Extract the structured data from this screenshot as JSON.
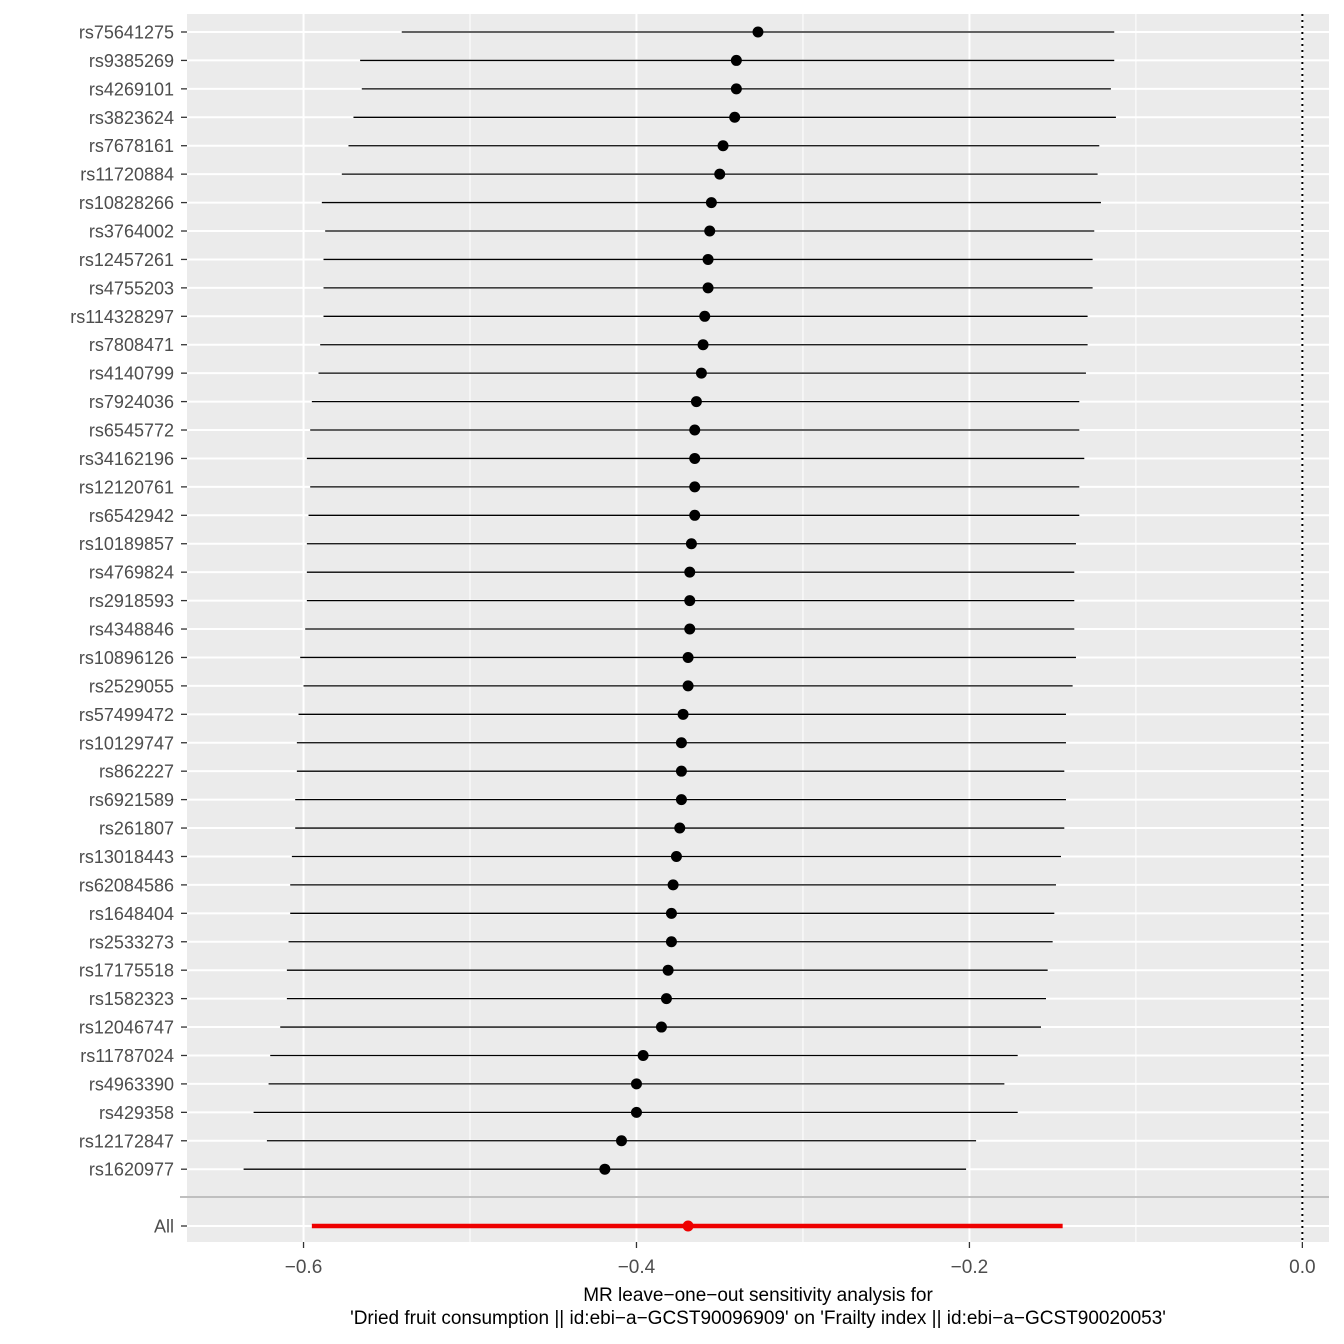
{
  "chart_data": {
    "type": "scatter",
    "subtype": "forest-leave-one-out",
    "xlabel_lines": [
      "MR leave−one−out sensitivity analysis for",
      "'Dried fruit consumption || id:ebi−a−GCST90096909' on 'Frailty index || id:ebi−a−GCST90020053'"
    ],
    "xlim": [
      -0.67,
      0.016
    ],
    "x_ticks": [
      -0.6,
      -0.4,
      -0.2,
      0.0
    ],
    "x_tick_labels": [
      "−0.6",
      "−0.4",
      "−0.2",
      "0.0"
    ],
    "reference_line": {
      "x": 0.0,
      "style": "dotted"
    },
    "grid": true,
    "colors": {
      "panel": "#ebebeb",
      "grid": "#ffffff",
      "point": "#000000",
      "overall": "#ee0000",
      "separator": "#bfbfbf"
    },
    "rows": [
      {
        "snp": "rs75641275",
        "b": -0.327,
        "lo": -0.541,
        "hi": -0.113
      },
      {
        "snp": "rs9385269",
        "b": -0.34,
        "lo": -0.566,
        "hi": -0.113
      },
      {
        "snp": "rs4269101",
        "b": -0.34,
        "lo": -0.565,
        "hi": -0.115
      },
      {
        "snp": "rs3823624",
        "b": -0.341,
        "lo": -0.57,
        "hi": -0.112
      },
      {
        "snp": "rs7678161",
        "b": -0.348,
        "lo": -0.573,
        "hi": -0.122
      },
      {
        "snp": "rs11720884",
        "b": -0.35,
        "lo": -0.577,
        "hi": -0.123
      },
      {
        "snp": "rs10828266",
        "b": -0.355,
        "lo": -0.589,
        "hi": -0.121
      },
      {
        "snp": "rs3764002",
        "b": -0.356,
        "lo": -0.587,
        "hi": -0.125
      },
      {
        "snp": "rs12457261",
        "b": -0.357,
        "lo": -0.588,
        "hi": -0.126
      },
      {
        "snp": "rs4755203",
        "b": -0.357,
        "lo": -0.588,
        "hi": -0.126
      },
      {
        "snp": "rs114328297",
        "b": -0.359,
        "lo": -0.588,
        "hi": -0.129
      },
      {
        "snp": "rs7808471",
        "b": -0.36,
        "lo": -0.59,
        "hi": -0.129
      },
      {
        "snp": "rs4140799",
        "b": -0.361,
        "lo": -0.591,
        "hi": -0.13
      },
      {
        "snp": "rs7924036",
        "b": -0.364,
        "lo": -0.595,
        "hi": -0.134
      },
      {
        "snp": "rs6545772",
        "b": -0.365,
        "lo": -0.596,
        "hi": -0.134
      },
      {
        "snp": "rs34162196",
        "b": -0.365,
        "lo": -0.598,
        "hi": -0.131
      },
      {
        "snp": "rs12120761",
        "b": -0.365,
        "lo": -0.596,
        "hi": -0.134
      },
      {
        "snp": "rs6542942",
        "b": -0.365,
        "lo": -0.597,
        "hi": -0.134
      },
      {
        "snp": "rs10189857",
        "b": -0.367,
        "lo": -0.598,
        "hi": -0.136
      },
      {
        "snp": "rs4769824",
        "b": -0.368,
        "lo": -0.598,
        "hi": -0.137
      },
      {
        "snp": "rs2918593",
        "b": -0.368,
        "lo": -0.598,
        "hi": -0.137
      },
      {
        "snp": "rs4348846",
        "b": -0.368,
        "lo": -0.599,
        "hi": -0.137
      },
      {
        "snp": "rs10896126",
        "b": -0.369,
        "lo": -0.602,
        "hi": -0.136
      },
      {
        "snp": "rs2529055",
        "b": -0.369,
        "lo": -0.6,
        "hi": -0.138
      },
      {
        "snp": "rs57499472",
        "b": -0.372,
        "lo": -0.603,
        "hi": -0.142
      },
      {
        "snp": "rs10129747",
        "b": -0.373,
        "lo": -0.604,
        "hi": -0.142
      },
      {
        "snp": "rs862227",
        "b": -0.373,
        "lo": -0.604,
        "hi": -0.143
      },
      {
        "snp": "rs6921589",
        "b": -0.373,
        "lo": -0.605,
        "hi": -0.142
      },
      {
        "snp": "rs261807",
        "b": -0.374,
        "lo": -0.605,
        "hi": -0.143
      },
      {
        "snp": "rs13018443",
        "b": -0.376,
        "lo": -0.607,
        "hi": -0.145
      },
      {
        "snp": "rs62084586",
        "b": -0.378,
        "lo": -0.608,
        "hi": -0.148
      },
      {
        "snp": "rs1648404",
        "b": -0.379,
        "lo": -0.608,
        "hi": -0.149
      },
      {
        "snp": "rs2533273",
        "b": -0.379,
        "lo": -0.609,
        "hi": -0.15
      },
      {
        "snp": "rs17175518",
        "b": -0.381,
        "lo": -0.61,
        "hi": -0.153
      },
      {
        "snp": "rs1582323",
        "b": -0.382,
        "lo": -0.61,
        "hi": -0.154
      },
      {
        "snp": "rs12046747",
        "b": -0.385,
        "lo": -0.614,
        "hi": -0.157
      },
      {
        "snp": "rs11787024",
        "b": -0.396,
        "lo": -0.62,
        "hi": -0.171
      },
      {
        "snp": "rs4963390",
        "b": -0.4,
        "lo": -0.621,
        "hi": -0.179
      },
      {
        "snp": "rs429358",
        "b": -0.4,
        "lo": -0.63,
        "hi": -0.171
      },
      {
        "snp": "rs12172847",
        "b": -0.409,
        "lo": -0.622,
        "hi": -0.196
      },
      {
        "snp": "rs1620977",
        "b": -0.419,
        "lo": -0.636,
        "hi": -0.202
      }
    ],
    "overall": {
      "snp": "All",
      "b": -0.369,
      "lo": -0.595,
      "hi": -0.144
    }
  }
}
